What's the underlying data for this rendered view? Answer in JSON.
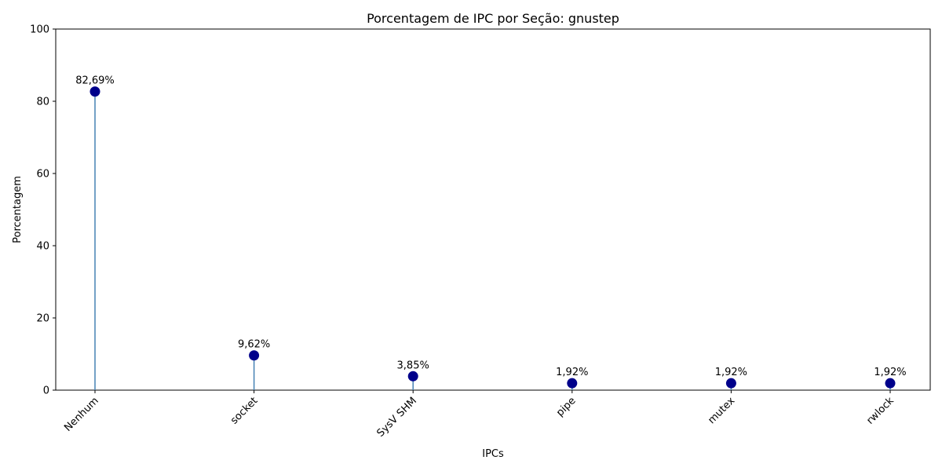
{
  "chart_data": {
    "type": "lollipop",
    "title": "Porcentagem de IPC por Seção: gnustep",
    "xlabel": "IPCs",
    "ylabel": "Porcentagem",
    "ylim": [
      0,
      100
    ],
    "yticks": [
      0,
      20,
      40,
      60,
      80,
      100
    ],
    "categories": [
      "Nenhum",
      "socket",
      "SysV SHM",
      "pipe",
      "mutex",
      "rwlock"
    ],
    "values": [
      82.69,
      9.62,
      3.85,
      1.92,
      1.92,
      1.92
    ],
    "value_labels": [
      "82,69%",
      "9,62%",
      "3,85%",
      "1,92%",
      "1,92%",
      "1,92%"
    ],
    "colors": {
      "stem": "#4682b4",
      "marker": "#00008b"
    },
    "grid": false,
    "legend": "none"
  }
}
